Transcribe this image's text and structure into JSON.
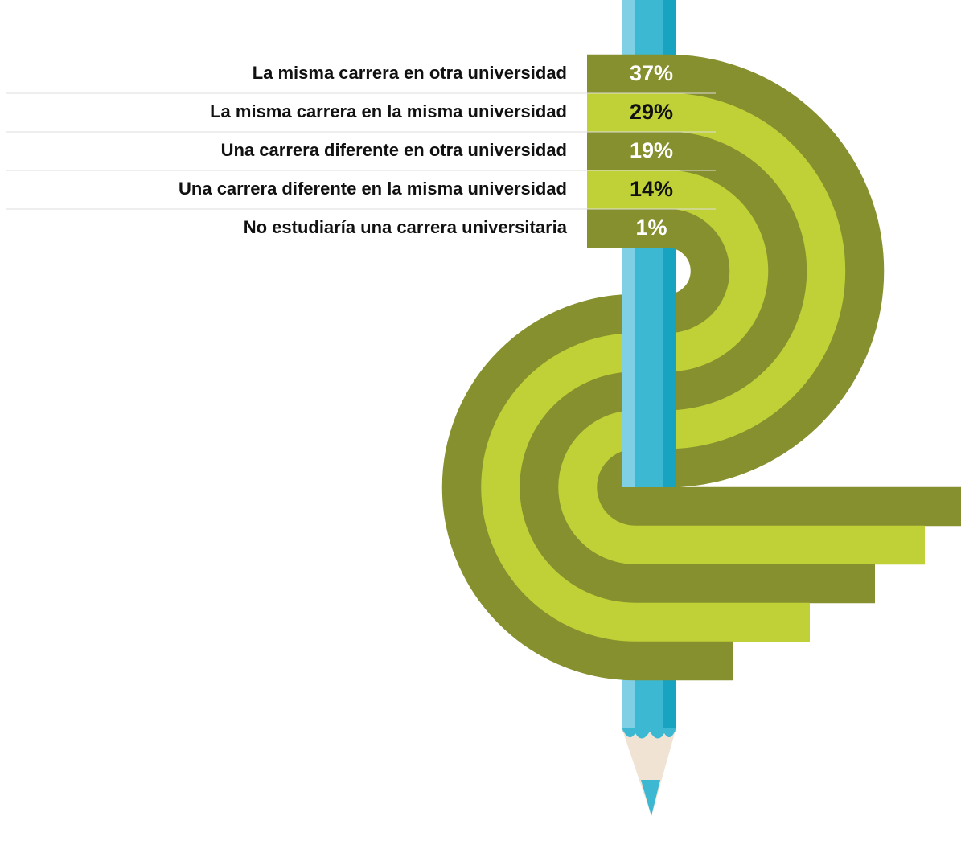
{
  "items": [
    {
      "label": "La misma carrera en otra universidad",
      "value": "37%"
    },
    {
      "label": "La misma carrera en la misma universidad",
      "value": "29%"
    },
    {
      "label": "Una carrera diferente en otra universidad",
      "value": "19%"
    },
    {
      "label": "Una carrera diferente en la misma universidad",
      "value": "14%"
    },
    {
      "label": "No estudiaría una carrera universitaria",
      "value": "1%"
    }
  ]
}
